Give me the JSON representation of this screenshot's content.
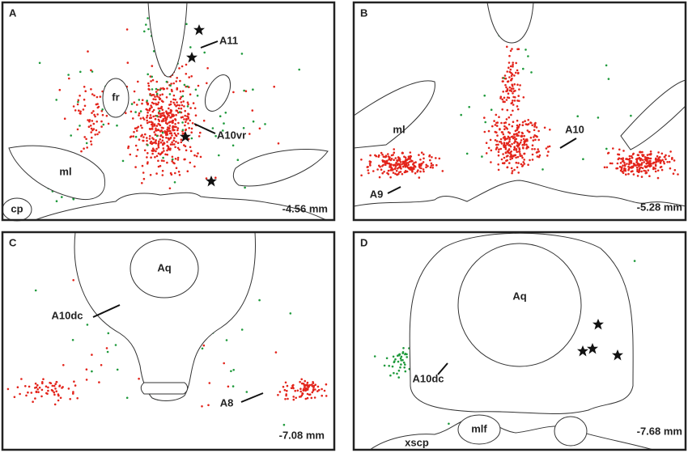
{
  "panels": [
    {
      "letter": "A",
      "labels": [
        "A11",
        "A10vr",
        "fr",
        "ml",
        "cp"
      ],
      "depth": "-4.56 mm"
    },
    {
      "letter": "B",
      "labels": [
        "ml",
        "A10",
        "A9"
      ],
      "depth": "-5.28 mm"
    },
    {
      "letter": "C",
      "labels": [
        "Aq",
        "A10dc",
        "A8"
      ],
      "depth": "-7.08 mm"
    },
    {
      "letter": "D",
      "labels": [
        "Aq",
        "A10dc",
        "mlf",
        "xscp"
      ],
      "depth": "-7.68 mm"
    }
  ]
}
